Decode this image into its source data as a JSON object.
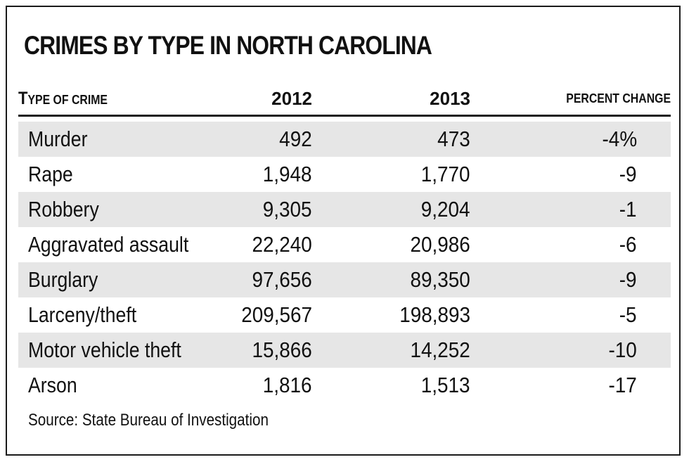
{
  "chart_data": {
    "type": "table",
    "title": "CRIMES BY TYPE IN NORTH CAROLINA",
    "columns": {
      "type_initial": "T",
      "type_rest": "YPE OF CRIME",
      "y2012": "2012",
      "y2013": "2013",
      "change": "PERCENT CHANGE"
    },
    "rows": [
      {
        "type": "Murder",
        "y2012": "492",
        "y2013": "473",
        "change": "-4%"
      },
      {
        "type": "Rape",
        "y2012": "1,948",
        "y2013": "1,770",
        "change": "-9"
      },
      {
        "type": "Robbery",
        "y2012": "9,305",
        "y2013": "9,204",
        "change": "-1"
      },
      {
        "type": "Aggravated assault",
        "y2012": "22,240",
        "y2013": "20,986",
        "change": "-6"
      },
      {
        "type": "Burglary",
        "y2012": "97,656",
        "y2013": "89,350",
        "change": "-9"
      },
      {
        "type": "Larceny/theft",
        "y2012": "209,567",
        "y2013": "198,893",
        "change": "-5"
      },
      {
        "type": "Motor vehicle theft",
        "y2012": "15,866",
        "y2013": "14,252",
        "change": "-10"
      },
      {
        "type": "Arson",
        "y2012": "1,816",
        "y2013": "1,513",
        "change": "-17"
      }
    ],
    "source": "Source: State Bureau of Investigation",
    "shading": "alternating rows, starting with first",
    "colors": {
      "shade": "#e6e6e6",
      "text": "#111111",
      "rule": "#1a1a1a"
    }
  }
}
